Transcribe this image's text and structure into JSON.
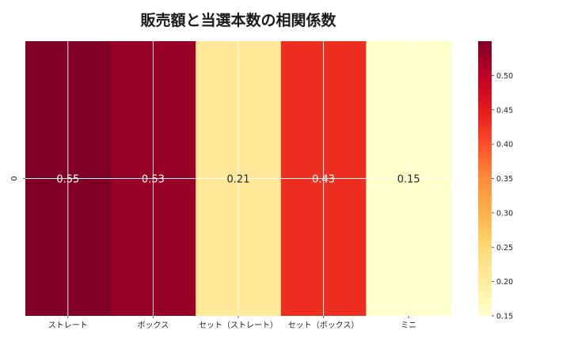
{
  "chart_data": {
    "type": "heatmap",
    "title": "販売額と当選本数の相関係数",
    "xlabel": "",
    "ylabel": "",
    "categories": [
      "ストレート",
      "ボックス",
      "セット（ストレート）",
      "セット（ボックス）",
      "ミニ"
    ],
    "rows": [
      "0"
    ],
    "values": [
      [
        0.55,
        0.53,
        0.21,
        0.43,
        0.15
      ]
    ],
    "value_labels": [
      "0.55",
      "0.53",
      "0.21",
      "0.43",
      "0.15"
    ],
    "colorbar": {
      "min": 0.15,
      "max": 0.55,
      "ticks": [
        0.15,
        0.2,
        0.25,
        0.3,
        0.35,
        0.4,
        0.45,
        0.5
      ],
      "tick_labels": [
        "0.15",
        "0.20",
        "0.25",
        "0.30",
        "0.35",
        "0.40",
        "0.45",
        "0.50"
      ],
      "colormap": "YlOrRd"
    },
    "grid": true,
    "colors": {
      "ramp": [
        "#ffffcc",
        "#ffeda0",
        "#fed976",
        "#feb24c",
        "#fd8d3c",
        "#fc4e2a",
        "#e31a1c",
        "#bd0026",
        "#800026"
      ],
      "grid_line": "#ffffff"
    }
  }
}
